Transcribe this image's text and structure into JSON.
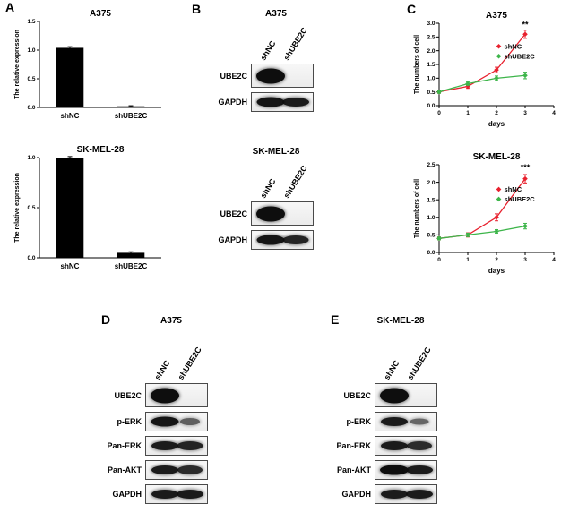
{
  "figure": {
    "panel_labels": {
      "A": "A",
      "B": "B",
      "C": "C",
      "D": "D",
      "E": "E"
    }
  },
  "colors": {
    "shNC": "#e8212e",
    "shUBE2C": "#3db54a",
    "bar": "#000000",
    "axis": "#000000"
  },
  "chart_data": [
    {
      "id": "bar-a375",
      "type": "bar",
      "title": "A375",
      "ylabel": "The relative expression",
      "xlabel": "",
      "categories": [
        "shNC",
        "shUBE2C"
      ],
      "values": [
        1.04,
        0.02
      ],
      "errors": [
        0.02,
        0.01
      ],
      "ylim": [
        0,
        1.5
      ],
      "yticks": [
        0.0,
        0.5,
        1.0,
        1.5
      ],
      "bar_color": "#000000",
      "grid": false
    },
    {
      "id": "bar-skmel28",
      "type": "bar",
      "title": "SK-MEL-28",
      "ylabel": "The relative expression",
      "xlabel": "",
      "categories": [
        "shNC",
        "shUBE2C"
      ],
      "values": [
        1.0,
        0.05
      ],
      "errors": [
        0.01,
        0.01
      ],
      "ylim": [
        0,
        1.0
      ],
      "yticks": [
        0.0,
        0.5,
        1.0
      ],
      "bar_color": "#000000",
      "grid": false
    },
    {
      "id": "line-a375",
      "type": "line",
      "title": "A375",
      "ylabel": "The numbers of cell",
      "xlabel": "days",
      "x": [
        0,
        1,
        2,
        3
      ],
      "xlim": [
        0,
        4
      ],
      "xticks": [
        0,
        1,
        2,
        3,
        4
      ],
      "ylim": [
        0,
        3.0
      ],
      "yticks": [
        0.0,
        0.5,
        1.0,
        1.5,
        2.0,
        2.5,
        3.0
      ],
      "grid": false,
      "legend_position": "inside-right",
      "series": [
        {
          "name": "shNC",
          "color": "#e8212e",
          "values": [
            0.5,
            0.7,
            1.3,
            2.6
          ],
          "errors": [
            0.05,
            0.07,
            0.1,
            0.15
          ]
        },
        {
          "name": "shUBE2C",
          "color": "#3db54a",
          "values": [
            0.5,
            0.8,
            1.0,
            1.1
          ],
          "errors": [
            0.05,
            0.06,
            0.08,
            0.12
          ]
        }
      ],
      "annotations": [
        {
          "text": "**",
          "x": 3,
          "y": 2.85
        }
      ]
    },
    {
      "id": "line-skmel28",
      "type": "line",
      "title": "SK-MEL-28",
      "ylabel": "The numbers of cell",
      "xlabel": "days",
      "x": [
        0,
        1,
        2,
        3
      ],
      "xlim": [
        0,
        4
      ],
      "xticks": [
        0,
        1,
        2,
        3,
        4
      ],
      "ylim": [
        0,
        2.5
      ],
      "yticks": [
        0.0,
        0.5,
        1.0,
        1.5,
        2.0,
        2.5
      ],
      "grid": false,
      "legend_position": "inside-right",
      "series": [
        {
          "name": "shNC",
          "color": "#e8212e",
          "values": [
            0.4,
            0.5,
            1.0,
            2.1
          ],
          "errors": [
            0.04,
            0.06,
            0.1,
            0.12
          ]
        },
        {
          "name": "shUBE2C",
          "color": "#3db54a",
          "values": [
            0.4,
            0.5,
            0.6,
            0.75
          ],
          "errors": [
            0.04,
            0.05,
            0.05,
            0.08
          ]
        }
      ],
      "annotations": [
        {
          "text": "***",
          "x": 3,
          "y": 2.35
        }
      ]
    }
  ],
  "blots": {
    "b_top": {
      "title": "A375",
      "lanes": [
        "shNC",
        "shUBE2C"
      ],
      "rows": [
        {
          "label": "UBE2C",
          "bands": [
            1,
            0
          ]
        },
        {
          "label": "GAPDH",
          "bands": [
            0.95,
            0.9
          ]
        }
      ]
    },
    "b_bottom": {
      "title": "SK-MEL-28",
      "lanes": [
        "shNC",
        "shUBE2C"
      ],
      "rows": [
        {
          "label": "UBE2C",
          "bands": [
            1,
            0
          ]
        },
        {
          "label": "GAPDH",
          "bands": [
            0.95,
            0.85
          ]
        }
      ]
    },
    "d": {
      "title": "A375",
      "lanes": [
        "shNC",
        "shUBE2C"
      ],
      "rows": [
        {
          "label": "UBE2C",
          "bands": [
            1,
            0
          ]
        },
        {
          "label": "p-ERK",
          "bands": [
            0.95,
            0.45
          ]
        },
        {
          "label": "Pan-ERK",
          "bands": [
            0.9,
            0.85
          ]
        },
        {
          "label": "Pan-AKT",
          "bands": [
            0.9,
            0.8
          ]
        },
        {
          "label": "GAPDH",
          "bands": [
            0.9,
            0.9
          ]
        }
      ]
    },
    "e": {
      "title": "SK-MEL-28",
      "lanes": [
        "shNC",
        "shUBE2C"
      ],
      "rows": [
        {
          "label": "UBE2C",
          "bands": [
            1,
            0
          ]
        },
        {
          "label": "p-ERK",
          "bands": [
            0.9,
            0.4
          ]
        },
        {
          "label": "Pan-ERK",
          "bands": [
            0.9,
            0.8
          ]
        },
        {
          "label": "Pan-AKT",
          "bands": [
            1,
            0.9
          ]
        },
        {
          "label": "GAPDH",
          "bands": [
            0.9,
            0.9
          ]
        }
      ]
    }
  }
}
